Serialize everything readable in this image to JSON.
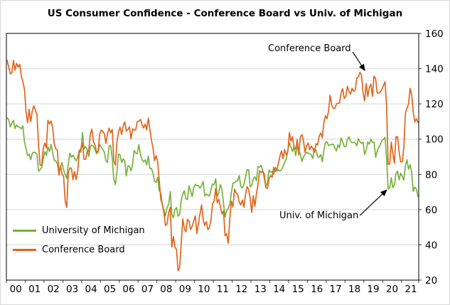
{
  "chart_data": {
    "type": "line",
    "title": "US Consumer Confidence - Conference Board vs Univ. of Michigan",
    "x_unit": "years (monthly observations)",
    "x_labels": [
      "00",
      "01",
      "02",
      "03",
      "04",
      "05",
      "06",
      "07",
      "08",
      "09",
      "10",
      "11",
      "12",
      "13",
      "14",
      "15",
      "16",
      "17",
      "18",
      "19",
      "20",
      "21"
    ],
    "months_per_label": 12,
    "ylim": [
      20,
      160
    ],
    "ytick_step": 20,
    "grid": "horizontal",
    "y_axis_side": "right",
    "legend_position": "lower-left-inside",
    "series": [
      {
        "name": "University of Michigan",
        "color": "#77B13D",
        "values": [
          112,
          111,
          107,
          109,
          110.7,
          106,
          108,
          107,
          106.8,
          105.8,
          107.6,
          98.4,
          94.7,
          90.6,
          91.5,
          88.4,
          92,
          92.6,
          92.4,
          91.5,
          81.8,
          82.7,
          83.9,
          88.8,
          93,
          90.7,
          95.7,
          93,
          96.9,
          92.4,
          88.1,
          87.6,
          86.1,
          80.6,
          84.2,
          86.7,
          82.4,
          79.9,
          77.6,
          86,
          92.1,
          89.7,
          90.9,
          89.3,
          87.7,
          89.6,
          93.7,
          92.6,
          103.8,
          94.4,
          95.8,
          94.2,
          90.2,
          95.6,
          96.7,
          95.9,
          94.2,
          91.7,
          92.8,
          97.1,
          95.5,
          94.1,
          92.6,
          87.7,
          86.9,
          96,
          96.5,
          89.1,
          76.9,
          74.2,
          81.6,
          91.5,
          91.2,
          86.7,
          88.9,
          87.4,
          79.1,
          84.9,
          84.7,
          82,
          85.4,
          93.6,
          92.1,
          91.7,
          96.9,
          91.3,
          88.4,
          87.1,
          88.3,
          85.3,
          90.4,
          83.4,
          83.4,
          80.9,
          76.1,
          75.5,
          78.4,
          70.8,
          69.5,
          62.6,
          59.8,
          56.4,
          61.2,
          63,
          70.3,
          57.6,
          55.3,
          60.1,
          61.2,
          56.3,
          57.3,
          65.1,
          68.7,
          70.8,
          66,
          65.7,
          73.5,
          70.6,
          67.4,
          72.5,
          74.4,
          73.6,
          73.6,
          72.2,
          73.6,
          76,
          67.8,
          68.9,
          68.2,
          67.7,
          71.6,
          74.5,
          74.2,
          77.5,
          67.5,
          69.8,
          74.3,
          71.5,
          63.7,
          55.8,
          59.5,
          60.8,
          63.2,
          69.9,
          75,
          75.3,
          76.2,
          76.4,
          79.3,
          73.2,
          72.3,
          74.3,
          78.3,
          82.6,
          82.7,
          72.9,
          73.8,
          77.6,
          78.6,
          76.4,
          84.5,
          84.1,
          85.1,
          82.1,
          77.5,
          73.2,
          75.1,
          82.5,
          81.2,
          81.6,
          80,
          84.1,
          81.9,
          82.5,
          81.8,
          82.5,
          84.6,
          86.9,
          88.8,
          93.6,
          98.1,
          95.4,
          93,
          95.9,
          90.7,
          96.1,
          93.1,
          91.9,
          87.2,
          90,
          91.3,
          92.6,
          92,
          91.7,
          91,
          89,
          94.7,
          93.5,
          90,
          89.8,
          91.2,
          87.2,
          93.8,
          98.2,
          98.5,
          96.3,
          96.9,
          97,
          97.1,
          95,
          93.4,
          96.8,
          95.1,
          100.7,
          98.5,
          95.9,
          95.7,
          99.7,
          101.4,
          98.8,
          98,
          98.2,
          97.9,
          96.2,
          100.1,
          98.6,
          97.5,
          98.3,
          91.2,
          93.8,
          98.4,
          97.2,
          100,
          98.2,
          98.4,
          89.8,
          93.2,
          95.5,
          96.8,
          99.3,
          99.8,
          101,
          89.1,
          71.8,
          72.3,
          78.1,
          72.5,
          74.1,
          80.4,
          81.8,
          76.9,
          80.7,
          79,
          76.8,
          84.9,
          88.3,
          82.9,
          85.5,
          81.2,
          70.3,
          72.8,
          71.7,
          67.4
        ]
      },
      {
        "name": "Conference Board",
        "color": "#E2641C",
        "values": [
          144.7,
          140.8,
          137.1,
          137.7,
          144.7,
          139.2,
          143,
          140.8,
          142.5,
          135.8,
          132.6,
          128.3,
          115.7,
          109.2,
          116.9,
          109.9,
          116.1,
          118.9,
          116.3,
          114,
          97,
          85.3,
          84.9,
          94.6,
          97.8,
          95,
          110.7,
          108.5,
          110.3,
          106.3,
          97.4,
          94.5,
          93.7,
          79.6,
          84.9,
          80.3,
          78.8,
          64.8,
          61.4,
          81,
          83.6,
          83.5,
          77,
          81.7,
          77,
          81.7,
          92.5,
          94.8,
          97.7,
          88.5,
          88.5,
          93,
          93.1,
          102.8,
          105.7,
          98.7,
          96.7,
          92.9,
          92.6,
          102.7,
          105.1,
          104.4,
          103,
          97.5,
          103.1,
          106.2,
          103.6,
          105.5,
          87.5,
          85.2,
          98.3,
          103.8,
          106.8,
          102.7,
          107.5,
          109.8,
          104.7,
          105.4,
          107,
          100.2,
          105.9,
          105.1,
          105.3,
          110,
          110.2,
          111.2,
          108.2,
          106.3,
          108.5,
          105.3,
          111.9,
          105.6,
          99.5,
          95.2,
          87.8,
          90.6,
          87.3,
          76.4,
          65.9,
          62.8,
          58.1,
          51,
          51.9,
          58.5,
          61.4,
          38.8,
          44.7,
          38.6,
          37.4,
          25.3,
          26.9,
          40.8,
          54.8,
          49.3,
          47.4,
          54.5,
          53.4,
          48.7,
          50.6,
          53.6,
          56.5,
          46.4,
          52.3,
          57.7,
          62.7,
          54.3,
          51,
          53.2,
          48.6,
          49.9,
          54.3,
          63.4,
          64.8,
          72,
          63.8,
          66,
          61.7,
          57.6,
          59.2,
          45.2,
          46.4,
          40.9,
          55.2,
          64.8,
          61.5,
          71.6,
          69.5,
          68.7,
          64.4,
          62.7,
          65.4,
          61.3,
          68.4,
          73.1,
          71.5,
          66.7,
          58.4,
          68,
          61.9,
          69,
          74.3,
          82.1,
          81,
          81.8,
          80.2,
          72.4,
          72,
          77.5,
          79.4,
          78.3,
          83.9,
          81.7,
          82.2,
          86.4,
          90.3,
          93.4,
          89,
          94.1,
          91,
          93.1,
          103.8,
          98.8,
          101.4,
          94.3,
          94.6,
          99.8,
          91,
          101.3,
          102.6,
          99.1,
          92.6,
          96.3,
          97.8,
          94,
          96.1,
          94.7,
          92.4,
          97.4,
          96.7,
          101.8,
          103.5,
          100.8,
          109.4,
          113.3,
          111.6,
          116.1,
          124.9,
          119.4,
          117.6,
          117.3,
          120,
          120.4,
          120.6,
          126.2,
          128.6,
          123.1,
          124.3,
          130,
          127,
          125.6,
          128.8,
          127.1,
          127.9,
          134.7,
          135.3,
          137.9,
          136.4,
          126.6,
          121.7,
          131.4,
          124.2,
          129.2,
          131.3,
          124.3,
          135.8,
          134.2,
          126.3,
          126.1,
          126.8,
          128.2,
          130.4,
          132.6,
          118.8,
          85.7,
          85.9,
          98.3,
          91.7,
          86.3,
          101.3,
          101.4,
          92.9,
          87.1,
          87.1,
          95.2,
          114.9,
          117.5,
          120,
          128.9,
          125.1,
          115.2,
          109.8,
          111.6,
          109.5
        ]
      }
    ],
    "annotations": [
      {
        "text": "Conference Board",
        "arrow": [
          0.84,
          0.075,
          0.869,
          0.15
        ]
      },
      {
        "text": "Univ. of Michigan",
        "arrow": [
          0.857,
          0.738,
          0.922,
          0.635
        ]
      }
    ]
  }
}
